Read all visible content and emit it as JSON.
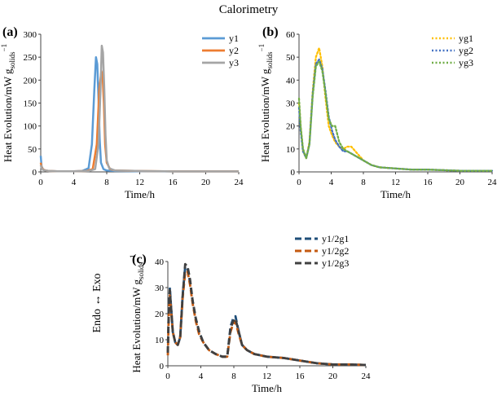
{
  "figure": {
    "title": "Calorimetry",
    "side_label": "Endo ↔ Exo"
  },
  "chart_data": [
    {
      "type": "line",
      "panel": "(a)",
      "xlabel": "Time/h",
      "ylabel_main": "Heat Evolution/mW g",
      "ylabel_sub": "solids",
      "ylabel_sup": "−1",
      "xlim": [
        0,
        24
      ],
      "ylim": [
        0,
        300
      ],
      "xticks": [
        0,
        4,
        8,
        12,
        16,
        20,
        24
      ],
      "yticks": [
        0,
        50,
        100,
        150,
        200,
        250,
        300
      ],
      "legend_position": "top-right",
      "series": [
        {
          "name": "y1",
          "color": "#5b9bd5",
          "dash": "solid",
          "x": [
            0,
            0.1,
            0.3,
            0.6,
            1,
            2,
            4,
            5,
            5.8,
            6.2,
            6.5,
            6.7,
            6.85,
            7.0,
            7.15,
            7.3,
            7.6,
            8,
            9,
            12,
            16,
            20,
            24
          ],
          "y": [
            35,
            12,
            5,
            3,
            2,
            1.5,
            1.5,
            2,
            8,
            60,
            180,
            250,
            235,
            160,
            70,
            20,
            6,
            3,
            2,
            1.5,
            1,
            1,
            1
          ]
        },
        {
          "name": "y2",
          "color": "#ed7d31",
          "dash": "solid",
          "x": [
            0,
            0.1,
            0.3,
            0.6,
            1,
            2,
            4,
            5.5,
            6.3,
            6.8,
            7.1,
            7.35,
            7.5,
            7.65,
            7.8,
            8,
            8.4,
            9,
            12,
            16,
            20,
            24
          ],
          "y": [
            20,
            10,
            5,
            3,
            2,
            1.5,
            1.5,
            2,
            6,
            60,
            180,
            220,
            210,
            150,
            60,
            20,
            6,
            3,
            2,
            1,
            1,
            1
          ]
        },
        {
          "name": "y3",
          "color": "#a5a5a5",
          "dash": "solid",
          "x": [
            0,
            0.1,
            0.3,
            0.6,
            1,
            2,
            4,
            5.8,
            6.6,
            7.0,
            7.25,
            7.4,
            7.55,
            7.7,
            7.85,
            8.0,
            8.3,
            9,
            12,
            16,
            20,
            24
          ],
          "y": [
            15,
            8,
            4,
            3,
            2,
            1.5,
            1.5,
            2,
            6,
            60,
            180,
            275,
            260,
            180,
            80,
            25,
            8,
            3,
            2,
            1,
            1,
            1
          ]
        }
      ]
    },
    {
      "type": "line",
      "panel": "(b)",
      "xlabel": "Time/h",
      "ylabel_main": "Heat Evolution/mW g",
      "ylabel_sub": "solids",
      "ylabel_sup": "−1",
      "xlim": [
        0,
        24
      ],
      "ylim": [
        0,
        60
      ],
      "xticks": [
        0,
        4,
        8,
        12,
        16,
        20,
        24
      ],
      "yticks": [
        0,
        10,
        20,
        30,
        40,
        50,
        60
      ],
      "legend_position": "top-right",
      "series": [
        {
          "name": "yg1",
          "color": "#ffc000",
          "dash": "dotted",
          "x": [
            0,
            0.2,
            0.5,
            0.9,
            1.3,
            1.7,
            2.1,
            2.5,
            2.9,
            3.3,
            3.7,
            4.1,
            4.5,
            5,
            5.5,
            6,
            6.5,
            7,
            8,
            9,
            10,
            12,
            14,
            16,
            20,
            24
          ],
          "y": [
            30,
            20,
            9,
            6,
            13,
            35,
            50,
            54,
            46,
            32,
            20,
            16,
            13,
            11,
            10,
            11,
            11,
            9,
            5,
            3,
            2,
            1.5,
            1,
            1,
            0.5,
            0.5
          ]
        },
        {
          "name": "yg2",
          "color": "#4472c4",
          "dash": "dotted",
          "x": [
            0,
            0.2,
            0.5,
            0.9,
            1.3,
            1.7,
            2.1,
            2.5,
            2.9,
            3.3,
            3.7,
            4.1,
            4.5,
            5,
            5.5,
            6,
            6.5,
            7,
            8,
            9,
            10,
            12,
            14,
            16,
            20,
            24
          ],
          "y": [
            28,
            18,
            9,
            6,
            12,
            34,
            47,
            49,
            45,
            35,
            24,
            18,
            14,
            11,
            9,
            9,
            8,
            7,
            5,
            3,
            2,
            1.5,
            1,
            1,
            0.5,
            0.5
          ]
        },
        {
          "name": "yg3",
          "color": "#70ad47",
          "dash": "dotted",
          "x": [
            0,
            0.2,
            0.5,
            0.9,
            1.3,
            1.7,
            2.1,
            2.5,
            2.9,
            3.3,
            3.7,
            4.1,
            4.5,
            5,
            5.5,
            6,
            6.5,
            7,
            8,
            9,
            10,
            12,
            14,
            16,
            20,
            24
          ],
          "y": [
            32,
            20,
            10,
            6,
            12,
            33,
            46,
            48,
            44,
            34,
            23,
            20,
            20,
            13,
            10,
            9,
            8,
            7,
            5,
            3,
            2,
            1.5,
            1,
            1,
            0.5,
            0.5
          ]
        }
      ]
    },
    {
      "type": "line",
      "panel": "(c)",
      "xlabel": "Time/h",
      "ylabel_main": "Heat Evolution/mW g",
      "ylabel_sub": "solids",
      "ylabel_sup": "−1",
      "xlim": [
        0,
        24
      ],
      "ylim": [
        0,
        40
      ],
      "xticks": [
        0,
        4,
        8,
        12,
        16,
        20,
        24
      ],
      "yticks": [
        0,
        10,
        20,
        30,
        40
      ],
      "legend_position": "top-right",
      "series": [
        {
          "name": "y1/2g1",
          "color": "#1f4e79",
          "dash": "dashed",
          "x": [
            0,
            0.1,
            0.25,
            0.4,
            0.6,
            0.9,
            1.2,
            1.5,
            1.8,
            2.1,
            2.4,
            2.7,
            3.0,
            3.4,
            3.8,
            4.3,
            5,
            5.8,
            6.6,
            7.2,
            7.6,
            7.9,
            8.2,
            8.6,
            9,
            9.6,
            10.5,
            12,
            14,
            16,
            18,
            20,
            22,
            24
          ],
          "y": [
            5,
            20,
            30,
            22,
            13,
            9,
            8,
            11,
            27,
            38,
            37,
            32,
            25,
            18,
            13,
            9,
            6,
            4.5,
            3.5,
            3.5,
            15,
            18,
            19,
            13,
            8,
            6,
            4.5,
            3.5,
            3,
            2,
            1,
            0.5,
            0.5,
            0.3
          ]
        },
        {
          "name": "y1/2g2",
          "color": "#c55a11",
          "dash": "dashed",
          "x": [
            0,
            0.1,
            0.25,
            0.4,
            0.6,
            0.9,
            1.2,
            1.5,
            1.8,
            2.1,
            2.4,
            2.7,
            3.0,
            3.4,
            3.8,
            4.3,
            5,
            5.8,
            6.6,
            7.2,
            7.6,
            7.9,
            8.2,
            8.6,
            9,
            9.6,
            10.5,
            12,
            14,
            16,
            18,
            20,
            22,
            24
          ],
          "y": [
            4,
            18,
            27,
            21,
            13,
            9,
            8,
            11,
            26,
            36,
            36,
            31,
            24,
            17,
            12,
            9,
            6,
            4.5,
            3.5,
            3.5,
            13,
            16,
            17,
            12,
            8,
            6,
            4.5,
            3.5,
            3,
            2,
            1,
            0.5,
            0.5,
            0.3
          ]
        },
        {
          "name": "y1/2g3",
          "color": "#404040",
          "dash": "dashed",
          "x": [
            0,
            0.1,
            0.25,
            0.4,
            0.6,
            0.9,
            1.2,
            1.5,
            1.8,
            2.1,
            2.4,
            2.7,
            3.0,
            3.4,
            3.8,
            4.3,
            5,
            5.8,
            6.6,
            7.2,
            7.6,
            7.9,
            8.2,
            8.6,
            9,
            9.6,
            10.5,
            12,
            14,
            16,
            18,
            20,
            22,
            24
          ],
          "y": [
            5,
            19,
            29,
            22,
            13,
            9,
            8,
            11,
            27,
            39,
            38,
            33,
            25,
            18,
            13,
            9,
            6,
            4.5,
            3.5,
            3.5,
            14,
            17,
            18,
            13,
            8,
            6,
            4.5,
            3.5,
            3,
            2,
            1,
            0.5,
            0.5,
            0.3
          ]
        }
      ]
    }
  ]
}
